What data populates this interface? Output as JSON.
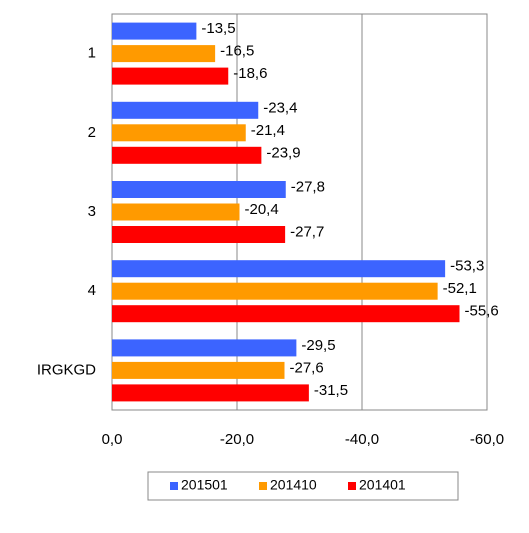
{
  "chart_data": {
    "type": "hbar",
    "categories": [
      "1",
      "2",
      "3",
      "4",
      "IRGKGD"
    ],
    "series": [
      {
        "name": "201501",
        "color": "#3c64ff",
        "values": [
          -13.5,
          -23.4,
          -27.8,
          -53.3,
          -29.5
        ],
        "value_labels": [
          "-13,5",
          "-23,4",
          "-27,8",
          "-53,3",
          "-29,5"
        ]
      },
      {
        "name": "201410",
        "color": "#ff9a00",
        "values": [
          -16.5,
          -21.4,
          -20.4,
          -52.1,
          -27.6
        ],
        "value_labels": [
          "-16,5",
          "-21,4",
          "-20,4",
          "-52,1",
          "-27,6"
        ]
      },
      {
        "name": "201401",
        "color": "#ff0000",
        "values": [
          -18.6,
          -23.9,
          -27.7,
          -55.6,
          -31.5
        ],
        "value_labels": [
          "-18,6",
          "-23,9",
          "-27,7",
          "-55,6",
          "-31,5"
        ]
      }
    ],
    "xlim": [
      0,
      -60
    ],
    "xticks": [
      {
        "value": 0,
        "label": "0,0"
      },
      {
        "value": -20,
        "label": "-20,0"
      },
      {
        "value": -40,
        "label": "-40,0"
      },
      {
        "value": -60,
        "label": "-60,0"
      }
    ],
    "grid": true,
    "legend": "bottom"
  }
}
